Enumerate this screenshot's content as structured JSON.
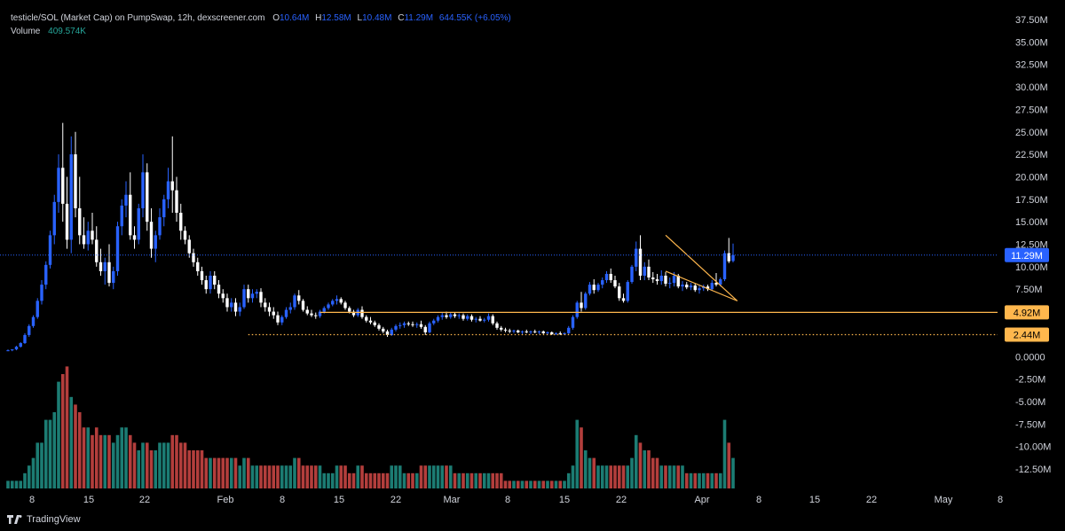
{
  "legend": {
    "title": "testicle/SOL (Market Cap) on PumpSwap, 12h, dexscreener.com",
    "open_key": "O",
    "open": "10.64M",
    "high_key": "H",
    "high": "12.58M",
    "low_key": "L",
    "low": "10.48M",
    "close_key": "C",
    "close": "11.29M",
    "change": "644.55K (+6.05%)",
    "volume_label": "Volume",
    "volume_value": "409.574K"
  },
  "branding": {
    "name": "TradingView"
  },
  "colors": {
    "background": "#000000",
    "up": "#2962ff",
    "down": "#ffffff",
    "vol_up": "#26a69a",
    "vol_down": "#ef5350",
    "drawing": "#ffb74d",
    "price_line": "#2962ff"
  },
  "chart_data": {
    "type": "candlestick",
    "interval": "12h",
    "y_ticks": [
      "37.50M",
      "35.00M",
      "32.50M",
      "30.00M",
      "27.50M",
      "25.00M",
      "22.50M",
      "20.00M",
      "17.50M",
      "15.00M",
      "12.50M",
      "10.00M",
      "7.50M",
      "5.00M",
      "2.50M",
      "0.0000",
      "-2.50M",
      "-5.00M",
      "-7.50M",
      "-10.00M",
      "-12.50M"
    ],
    "ylim": [
      -14.2,
      38.5
    ],
    "x_ticks": [
      "8",
      "15",
      "22",
      "Feb",
      "8",
      "15",
      "22",
      "Mar",
      "8",
      "15",
      "22",
      "Apr",
      "8",
      "15",
      "22",
      "May",
      "8"
    ],
    "price_labels": [
      {
        "text": "11.29M",
        "value": 11.29,
        "color": "#2962ff",
        "text_color": "#ffffff"
      },
      {
        "text": "4.92M",
        "value": 4.92,
        "color": "#ffb74d",
        "text_color": "#000000"
      },
      {
        "text": "2.44M",
        "value": 2.44,
        "color": "#ffb74d",
        "text_color": "#000000"
      }
    ],
    "candles": [
      [
        0.7,
        0.8,
        0.6,
        0.7,
        1
      ],
      [
        0.7,
        0.8,
        0.6,
        0.8,
        1
      ],
      [
        0.8,
        1.2,
        0.7,
        1.1,
        1
      ],
      [
        1.1,
        1.6,
        1.0,
        1.5,
        1
      ],
      [
        1.5,
        2.6,
        1.4,
        2.4,
        2
      ],
      [
        2.4,
        3.6,
        2.2,
        3.4,
        3
      ],
      [
        3.4,
        4.6,
        3.2,
        4.4,
        4
      ],
      [
        4.4,
        6.5,
        4.2,
        6.2,
        6
      ],
      [
        6.2,
        8.5,
        5.8,
        8.0,
        6
      ],
      [
        8.0,
        10.6,
        7.5,
        10.2,
        9
      ],
      [
        10.2,
        14.0,
        9.8,
        13.5,
        9
      ],
      [
        13.5,
        18.0,
        12.5,
        17.2,
        10
      ],
      [
        17.2,
        22.5,
        16.0,
        21.0,
        14
      ],
      [
        21.0,
        26.0,
        15.0,
        17.0,
        15
      ],
      [
        17.0,
        20.0,
        12.0,
        13.0,
        16
      ],
      [
        13.0,
        24.5,
        11.5,
        22.5,
        12
      ],
      [
        22.5,
        25.0,
        15.5,
        16.5,
        11
      ],
      [
        16.5,
        20.0,
        12.5,
        13.5,
        10
      ],
      [
        13.5,
        15.5,
        12.0,
        12.5,
        8
      ],
      [
        12.5,
        15.0,
        11.8,
        14.0,
        8
      ],
      [
        14.0,
        16.0,
        12.5,
        13.0,
        7
      ],
      [
        13.0,
        14.5,
        10.0,
        10.5,
        8
      ],
      [
        10.5,
        12.0,
        9.0,
        9.5,
        7
      ],
      [
        9.5,
        11.0,
        8.0,
        10.5,
        7
      ],
      [
        10.5,
        12.5,
        7.8,
        8.2,
        7
      ],
      [
        8.2,
        10.0,
        7.5,
        9.5,
        6
      ],
      [
        9.5,
        15.0,
        9.0,
        14.5,
        7
      ],
      [
        14.5,
        17.5,
        13.5,
        16.8,
        8
      ],
      [
        16.8,
        19.5,
        15.5,
        18.0,
        8
      ],
      [
        18.0,
        20.5,
        13.0,
        13.5,
        7
      ],
      [
        13.5,
        14.5,
        12.0,
        13.0,
        6
      ],
      [
        13.0,
        17.0,
        12.5,
        16.5,
        5
      ],
      [
        16.5,
        22.5,
        15.5,
        20.5,
        6
      ],
      [
        20.5,
        21.5,
        14.0,
        15.0,
        6
      ],
      [
        15.0,
        16.5,
        11.0,
        12.0,
        5
      ],
      [
        12.0,
        14.0,
        10.5,
        13.5,
        5
      ],
      [
        13.5,
        16.5,
        13.0,
        15.5,
        6
      ],
      [
        15.5,
        18.0,
        14.5,
        17.5,
        6
      ],
      [
        17.5,
        21.0,
        16.5,
        19.5,
        6
      ],
      [
        19.5,
        24.5,
        16.0,
        18.5,
        7
      ],
      [
        18.5,
        20.0,
        15.0,
        16.0,
        7
      ],
      [
        16.0,
        17.0,
        13.0,
        14.0,
        6
      ],
      [
        14.0,
        14.5,
        12.5,
        13.0,
        6
      ],
      [
        13.0,
        13.5,
        11.0,
        11.5,
        5
      ],
      [
        11.5,
        12.0,
        10.0,
        10.5,
        5
      ],
      [
        10.5,
        11.0,
        9.0,
        9.5,
        5
      ],
      [
        9.5,
        10.0,
        8.0,
        8.5,
        5
      ],
      [
        8.5,
        9.0,
        7.0,
        7.5,
        4
      ],
      [
        7.5,
        9.5,
        7.0,
        9.0,
        4
      ],
      [
        9.0,
        9.5,
        7.5,
        8.0,
        4
      ],
      [
        8.0,
        8.5,
        6.5,
        7.0,
        4
      ],
      [
        7.0,
        7.5,
        6.0,
        6.5,
        4
      ],
      [
        6.5,
        7.0,
        5.0,
        5.5,
        4
      ],
      [
        5.5,
        6.5,
        5.0,
        6.0,
        4
      ],
      [
        6.0,
        6.5,
        4.5,
        5.0,
        4
      ],
      [
        5.0,
        6.0,
        4.5,
        5.5,
        3
      ],
      [
        5.5,
        8.0,
        5.3,
        7.5,
        4
      ],
      [
        7.5,
        8.0,
        6.0,
        6.5,
        4
      ],
      [
        6.5,
        7.5,
        6.0,
        7.0,
        3
      ],
      [
        7.0,
        7.5,
        6.5,
        7.2,
        3
      ],
      [
        7.2,
        7.6,
        5.5,
        6.0,
        3
      ],
      [
        6.0,
        6.5,
        5.0,
        5.5,
        3
      ],
      [
        5.5,
        6.0,
        4.5,
        5.0,
        3
      ],
      [
        5.0,
        5.5,
        4.2,
        4.6,
        3
      ],
      [
        4.6,
        5.0,
        3.5,
        3.8,
        3
      ],
      [
        3.8,
        4.6,
        3.5,
        4.4,
        3
      ],
      [
        4.4,
        5.5,
        4.2,
        5.2,
        3
      ],
      [
        5.2,
        6.0,
        4.8,
        5.5,
        3
      ],
      [
        5.5,
        7.0,
        5.2,
        6.8,
        4
      ],
      [
        6.8,
        7.4,
        5.8,
        6.2,
        4
      ],
      [
        6.2,
        6.4,
        5.0,
        5.2,
        3
      ],
      [
        5.2,
        5.6,
        4.6,
        4.8,
        3
      ],
      [
        4.8,
        5.2,
        4.4,
        4.6,
        3
      ],
      [
        4.6,
        4.9,
        4.2,
        4.5,
        3
      ],
      [
        4.5,
        5.2,
        4.3,
        5.0,
        3
      ],
      [
        5.0,
        5.6,
        4.8,
        5.4,
        2
      ],
      [
        5.4,
        6.0,
        5.2,
        5.8,
        2
      ],
      [
        5.8,
        6.4,
        5.6,
        6.2,
        2
      ],
      [
        6.2,
        6.8,
        5.8,
        6.4,
        3
      ],
      [
        6.4,
        6.6,
        5.8,
        6.0,
        3
      ],
      [
        6.0,
        6.2,
        5.2,
        5.4,
        3
      ],
      [
        5.4,
        5.6,
        4.8,
        5.0,
        2
      ],
      [
        5.0,
        5.2,
        4.4,
        4.6,
        2
      ],
      [
        4.6,
        5.4,
        4.4,
        5.2,
        3
      ],
      [
        5.2,
        5.6,
        4.2,
        4.4,
        3
      ],
      [
        4.4,
        4.6,
        3.8,
        4.0,
        2
      ],
      [
        4.0,
        4.4,
        3.6,
        3.8,
        2
      ],
      [
        3.8,
        4.0,
        3.3,
        3.5,
        2
      ],
      [
        3.5,
        3.7,
        2.9,
        3.1,
        2
      ],
      [
        3.1,
        3.3,
        2.6,
        2.8,
        2
      ],
      [
        2.8,
        3.0,
        2.2,
        2.4,
        2
      ],
      [
        2.4,
        3.2,
        2.3,
        3.0,
        3
      ],
      [
        3.0,
        3.6,
        2.8,
        3.4,
        3
      ],
      [
        3.4,
        3.8,
        3.1,
        3.5,
        3
      ],
      [
        3.5,
        3.9,
        3.2,
        3.7,
        2
      ],
      [
        3.7,
        3.9,
        3.4,
        3.6,
        2
      ],
      [
        3.6,
        3.9,
        3.3,
        3.5,
        2
      ],
      [
        3.5,
        3.8,
        3.2,
        3.6,
        2
      ],
      [
        3.6,
        4.0,
        3.1,
        3.3,
        3
      ],
      [
        3.3,
        3.5,
        2.4,
        2.7,
        3
      ],
      [
        2.7,
        3.9,
        2.6,
        3.7,
        3
      ],
      [
        3.7,
        4.2,
        3.5,
        4.0,
        3
      ],
      [
        4.0,
        4.6,
        3.8,
        4.4,
        3
      ],
      [
        4.4,
        4.9,
        4.1,
        4.6,
        3
      ],
      [
        4.6,
        5.0,
        4.2,
        4.4,
        3
      ],
      [
        4.4,
        4.9,
        4.2,
        4.7,
        3
      ],
      [
        4.7,
        4.9,
        4.3,
        4.5,
        2
      ],
      [
        4.5,
        4.8,
        4.2,
        4.6,
        2
      ],
      [
        4.6,
        4.8,
        4.0,
        4.2,
        2
      ],
      [
        4.2,
        4.7,
        4.0,
        4.5,
        2
      ],
      [
        4.5,
        4.7,
        3.9,
        4.1,
        2
      ],
      [
        4.1,
        4.4,
        3.8,
        4.2,
        2
      ],
      [
        4.2,
        4.5,
        3.9,
        4.0,
        2
      ],
      [
        4.0,
        4.3,
        3.8,
        4.1,
        2
      ],
      [
        4.1,
        4.8,
        3.9,
        4.5,
        2
      ],
      [
        4.5,
        4.7,
        3.5,
        3.7,
        2
      ],
      [
        3.7,
        3.9,
        3.0,
        3.2,
        2
      ],
      [
        3.2,
        3.4,
        2.8,
        3.0,
        2
      ],
      [
        3.0,
        3.2,
        2.7,
        2.9,
        1
      ],
      [
        2.9,
        3.1,
        2.6,
        2.8,
        1
      ],
      [
        2.8,
        3.0,
        2.6,
        2.9,
        1
      ],
      [
        2.9,
        3.0,
        2.6,
        2.7,
        1
      ],
      [
        2.7,
        2.9,
        2.5,
        2.8,
        1
      ],
      [
        2.8,
        3.0,
        2.6,
        2.7,
        1
      ],
      [
        2.7,
        2.9,
        2.5,
        2.8,
        1
      ],
      [
        2.8,
        3.0,
        2.6,
        2.7,
        1
      ],
      [
        2.7,
        2.9,
        2.5,
        2.8,
        1
      ],
      [
        2.8,
        2.9,
        2.5,
        2.6,
        1
      ],
      [
        2.6,
        2.8,
        2.4,
        2.7,
        1
      ],
      [
        2.7,
        2.8,
        2.4,
        2.5,
        1
      ],
      [
        2.5,
        2.7,
        2.4,
        2.6,
        1
      ],
      [
        2.6,
        2.8,
        2.4,
        2.5,
        1
      ],
      [
        2.5,
        2.7,
        2.4,
        2.6,
        1
      ],
      [
        2.6,
        3.4,
        2.5,
        3.2,
        2
      ],
      [
        3.2,
        4.6,
        3.0,
        4.4,
        3
      ],
      [
        4.4,
        6.2,
        4.2,
        6.0,
        9
      ],
      [
        6.0,
        7.2,
        5.0,
        5.4,
        8
      ],
      [
        5.4,
        7.2,
        5.2,
        7.0,
        5
      ],
      [
        7.0,
        8.3,
        6.8,
        8.0,
        4
      ],
      [
        8.0,
        8.6,
        7.0,
        7.4,
        4
      ],
      [
        7.4,
        8.2,
        7.2,
        8.0,
        3
      ],
      [
        8.0,
        8.8,
        7.6,
        8.5,
        3
      ],
      [
        8.5,
        9.5,
        8.2,
        9.2,
        3
      ],
      [
        9.2,
        9.8,
        8.2,
        8.5,
        3
      ],
      [
        8.5,
        9.0,
        7.6,
        7.8,
        3
      ],
      [
        7.8,
        8.2,
        6.2,
        6.5,
        3
      ],
      [
        6.5,
        7.0,
        6.0,
        6.2,
        3
      ],
      [
        6.2,
        8.5,
        6.0,
        8.3,
        3
      ],
      [
        8.3,
        10.2,
        8.1,
        10.0,
        4
      ],
      [
        10.0,
        12.8,
        9.5,
        12.0,
        7
      ],
      [
        12.0,
        13.5,
        8.5,
        9.0,
        6
      ],
      [
        9.0,
        10.5,
        8.5,
        10.0,
        5
      ],
      [
        10.0,
        10.8,
        8.5,
        8.8,
        5
      ],
      [
        8.8,
        9.4,
        8.2,
        8.6,
        4
      ],
      [
        8.6,
        9.2,
        8.0,
        8.4,
        4
      ],
      [
        8.4,
        9.6,
        8.0,
        9.0,
        3
      ],
      [
        9.0,
        9.4,
        7.8,
        8.1,
        3
      ],
      [
        8.1,
        8.8,
        7.6,
        8.2,
        3
      ],
      [
        8.2,
        9.4,
        7.8,
        9.0,
        3
      ],
      [
        9.0,
        9.2,
        7.6,
        7.8,
        3
      ],
      [
        7.8,
        8.4,
        7.3,
        8.0,
        3
      ],
      [
        8.0,
        8.3,
        7.5,
        7.7,
        2
      ],
      [
        7.7,
        8.2,
        7.4,
        7.9,
        2
      ],
      [
        7.9,
        8.1,
        7.2,
        7.4,
        2
      ],
      [
        7.4,
        7.9,
        7.0,
        7.6,
        2
      ],
      [
        7.6,
        8.0,
        7.3,
        7.8,
        2
      ],
      [
        7.8,
        8.0,
        7.3,
        7.5,
        2
      ],
      [
        7.5,
        8.5,
        7.3,
        8.2,
        2
      ],
      [
        8.2,
        9.3,
        7.8,
        8.0,
        2
      ],
      [
        8.0,
        8.8,
        7.8,
        8.6,
        2
      ],
      [
        8.6,
        11.8,
        8.4,
        11.5,
        9
      ],
      [
        11.5,
        13.2,
        10.4,
        10.6,
        6
      ],
      [
        10.64,
        12.58,
        10.48,
        11.29,
        4
      ]
    ],
    "drawings": [
      {
        "type": "hline",
        "value": 4.92,
        "from_index": 74,
        "style": "solid"
      },
      {
        "type": "hline",
        "value": 2.44,
        "from_index": 57,
        "style": "dotted"
      },
      {
        "type": "falling_wedge",
        "upper": [
          [
            156,
            13.5
          ],
          [
            167,
            8.5
          ]
        ],
        "lower": [
          [
            156,
            9.5
          ],
          [
            167,
            6.2
          ]
        ],
        "tip_index": 173,
        "tip_value": 6.2
      }
    ]
  }
}
